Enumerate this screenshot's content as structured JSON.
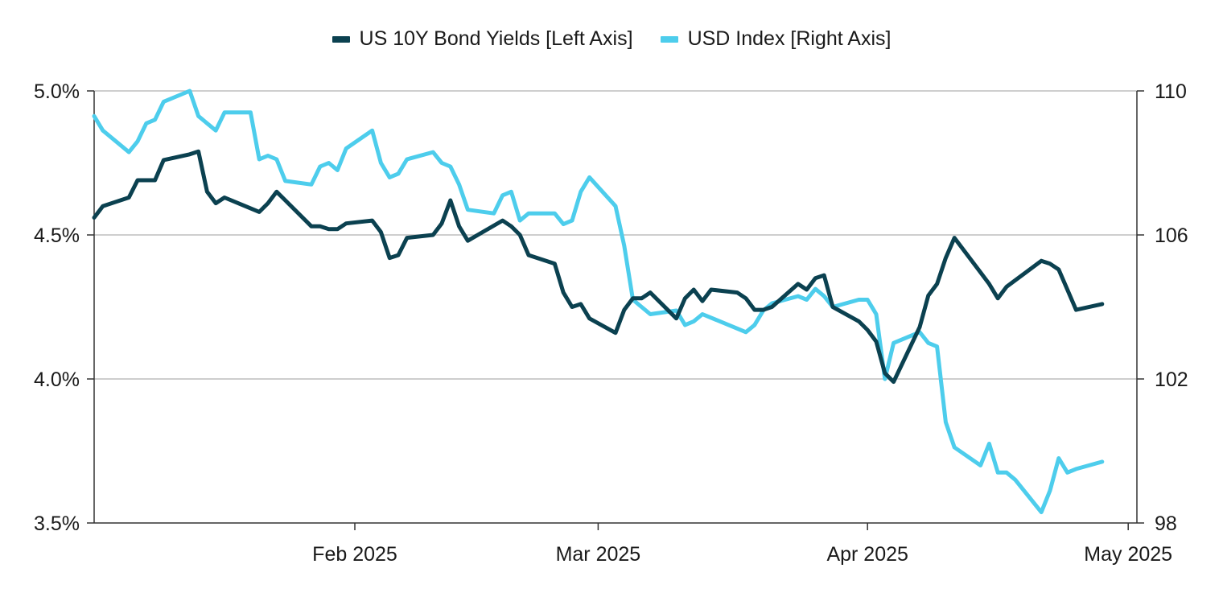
{
  "chart_data": {
    "type": "line",
    "title": "",
    "legend_placement": "top-center",
    "grid": true,
    "x_axis": {
      "type": "date",
      "range": [
        "2025-01-02",
        "2025-05-02"
      ],
      "ticks": [
        {
          "date": "2025-02-01",
          "label": "Feb 2025"
        },
        {
          "date": "2025-03-01",
          "label": "Mar 2025"
        },
        {
          "date": "2025-04-01",
          "label": "Apr 2025"
        },
        {
          "date": "2025-05-01",
          "label": "May 2025"
        }
      ]
    },
    "y_left": {
      "range": [
        3.5,
        5.0
      ],
      "ticks": [
        {
          "value": 3.5,
          "label": "3.5%"
        },
        {
          "value": 4.0,
          "label": "4.0%"
        },
        {
          "value": 4.5,
          "label": "4.5%"
        },
        {
          "value": 5.0,
          "label": "5.0%"
        }
      ]
    },
    "y_right": {
      "range": [
        98,
        110
      ],
      "ticks": [
        {
          "value": 98,
          "label": "98"
        },
        {
          "value": 102,
          "label": "102"
        },
        {
          "value": 106,
          "label": "106"
        },
        {
          "value": 110,
          "label": "110"
        }
      ]
    },
    "series": [
      {
        "name": "US 10Y Bond Yields [Left Axis]",
        "axis": "left",
        "color": "#0b4150",
        "points": [
          [
            "2025-01-02",
            4.56
          ],
          [
            "2025-01-03",
            4.6
          ],
          [
            "2025-01-06",
            4.63
          ],
          [
            "2025-01-07",
            4.69
          ],
          [
            "2025-01-08",
            4.69
          ],
          [
            "2025-01-09",
            4.69
          ],
          [
            "2025-01-10",
            4.76
          ],
          [
            "2025-01-13",
            4.78
          ],
          [
            "2025-01-14",
            4.79
          ],
          [
            "2025-01-15",
            4.65
          ],
          [
            "2025-01-16",
            4.61
          ],
          [
            "2025-01-17",
            4.63
          ],
          [
            "2025-01-21",
            4.58
          ],
          [
            "2025-01-22",
            4.61
          ],
          [
            "2025-01-23",
            4.65
          ],
          [
            "2025-01-24",
            4.62
          ],
          [
            "2025-01-27",
            4.53
          ],
          [
            "2025-01-28",
            4.53
          ],
          [
            "2025-01-29",
            4.52
          ],
          [
            "2025-01-30",
            4.52
          ],
          [
            "2025-01-31",
            4.54
          ],
          [
            "2025-02-03",
            4.55
          ],
          [
            "2025-02-04",
            4.51
          ],
          [
            "2025-02-05",
            4.42
          ],
          [
            "2025-02-06",
            4.43
          ],
          [
            "2025-02-07",
            4.49
          ],
          [
            "2025-02-10",
            4.5
          ],
          [
            "2025-02-11",
            4.54
          ],
          [
            "2025-02-12",
            4.62
          ],
          [
            "2025-02-13",
            4.53
          ],
          [
            "2025-02-14",
            4.48
          ],
          [
            "2025-02-18",
            4.55
          ],
          [
            "2025-02-19",
            4.53
          ],
          [
            "2025-02-20",
            4.5
          ],
          [
            "2025-02-21",
            4.43
          ],
          [
            "2025-02-24",
            4.4
          ],
          [
            "2025-02-25",
            4.3
          ],
          [
            "2025-02-26",
            4.25
          ],
          [
            "2025-02-27",
            4.26
          ],
          [
            "2025-02-28",
            4.21
          ],
          [
            "2025-03-03",
            4.16
          ],
          [
            "2025-03-04",
            4.24
          ],
          [
            "2025-03-05",
            4.28
          ],
          [
            "2025-03-06",
            4.28
          ],
          [
            "2025-03-07",
            4.3
          ],
          [
            "2025-03-10",
            4.21
          ],
          [
            "2025-03-11",
            4.28
          ],
          [
            "2025-03-12",
            4.31
          ],
          [
            "2025-03-13",
            4.27
          ],
          [
            "2025-03-14",
            4.31
          ],
          [
            "2025-03-17",
            4.3
          ],
          [
            "2025-03-18",
            4.28
          ],
          [
            "2025-03-19",
            4.24
          ],
          [
            "2025-03-20",
            4.24
          ],
          [
            "2025-03-21",
            4.25
          ],
          [
            "2025-03-24",
            4.33
          ],
          [
            "2025-03-25",
            4.31
          ],
          [
            "2025-03-26",
            4.35
          ],
          [
            "2025-03-27",
            4.36
          ],
          [
            "2025-03-28",
            4.25
          ],
          [
            "2025-03-31",
            4.2
          ],
          [
            "2025-04-01",
            4.17
          ],
          [
            "2025-04-02",
            4.13
          ],
          [
            "2025-04-03",
            4.02
          ],
          [
            "2025-04-04",
            3.99
          ],
          [
            "2025-04-07",
            4.18
          ],
          [
            "2025-04-08",
            4.29
          ],
          [
            "2025-04-09",
            4.33
          ],
          [
            "2025-04-10",
            4.42
          ],
          [
            "2025-04-11",
            4.49
          ],
          [
            "2025-04-14",
            4.37
          ],
          [
            "2025-04-15",
            4.33
          ],
          [
            "2025-04-16",
            4.28
          ],
          [
            "2025-04-17",
            4.32
          ],
          [
            "2025-04-21",
            4.41
          ],
          [
            "2025-04-22",
            4.4
          ],
          [
            "2025-04-23",
            4.38
          ],
          [
            "2025-04-24",
            4.31
          ],
          [
            "2025-04-25",
            4.24
          ],
          [
            "2025-04-28",
            4.26
          ]
        ]
      },
      {
        "name": "USD Index [Right Axis]",
        "axis": "right",
        "color": "#4dcdec",
        "points": [
          [
            "2025-01-02",
            109.3
          ],
          [
            "2025-01-03",
            108.9
          ],
          [
            "2025-01-06",
            108.3
          ],
          [
            "2025-01-07",
            108.6
          ],
          [
            "2025-01-08",
            109.1
          ],
          [
            "2025-01-09",
            109.2
          ],
          [
            "2025-01-10",
            109.7
          ],
          [
            "2025-01-13",
            110.0
          ],
          [
            "2025-01-14",
            109.3
          ],
          [
            "2025-01-15",
            109.1
          ],
          [
            "2025-01-16",
            108.9
          ],
          [
            "2025-01-17",
            109.4
          ],
          [
            "2025-01-20",
            109.4
          ],
          [
            "2025-01-21",
            108.1
          ],
          [
            "2025-01-22",
            108.2
          ],
          [
            "2025-01-23",
            108.1
          ],
          [
            "2025-01-24",
            107.5
          ],
          [
            "2025-01-27",
            107.4
          ],
          [
            "2025-01-28",
            107.9
          ],
          [
            "2025-01-29",
            108.0
          ],
          [
            "2025-01-30",
            107.8
          ],
          [
            "2025-01-31",
            108.4
          ],
          [
            "2025-02-03",
            108.9
          ],
          [
            "2025-02-04",
            108.0
          ],
          [
            "2025-02-05",
            107.6
          ],
          [
            "2025-02-06",
            107.7
          ],
          [
            "2025-02-07",
            108.1
          ],
          [
            "2025-02-10",
            108.3
          ],
          [
            "2025-02-11",
            108.0
          ],
          [
            "2025-02-12",
            107.9
          ],
          [
            "2025-02-13",
            107.4
          ],
          [
            "2025-02-14",
            106.7
          ],
          [
            "2025-02-17",
            106.6
          ],
          [
            "2025-02-18",
            107.1
          ],
          [
            "2025-02-19",
            107.2
          ],
          [
            "2025-02-20",
            106.4
          ],
          [
            "2025-02-21",
            106.6
          ],
          [
            "2025-02-24",
            106.6
          ],
          [
            "2025-02-25",
            106.3
          ],
          [
            "2025-02-26",
            106.4
          ],
          [
            "2025-02-27",
            107.2
          ],
          [
            "2025-02-28",
            107.6
          ],
          [
            "2025-03-03",
            106.8
          ],
          [
            "2025-03-04",
            105.7
          ],
          [
            "2025-03-05",
            104.2
          ],
          [
            "2025-03-06",
            104.0
          ],
          [
            "2025-03-07",
            103.8
          ],
          [
            "2025-03-10",
            103.9
          ],
          [
            "2025-03-11",
            103.5
          ],
          [
            "2025-03-12",
            103.6
          ],
          [
            "2025-03-13",
            103.8
          ],
          [
            "2025-03-17",
            103.4
          ],
          [
            "2025-03-18",
            103.3
          ],
          [
            "2025-03-19",
            103.5
          ],
          [
            "2025-03-20",
            103.9
          ],
          [
            "2025-03-21",
            104.1
          ],
          [
            "2025-03-24",
            104.3
          ],
          [
            "2025-03-25",
            104.2
          ],
          [
            "2025-03-26",
            104.5
          ],
          [
            "2025-03-27",
            104.3
          ],
          [
            "2025-03-28",
            104.0
          ],
          [
            "2025-03-31",
            104.2
          ],
          [
            "2025-04-01",
            104.2
          ],
          [
            "2025-04-02",
            103.8
          ],
          [
            "2025-04-03",
            102.0
          ],
          [
            "2025-04-04",
            103.0
          ],
          [
            "2025-04-07",
            103.3
          ],
          [
            "2025-04-08",
            103.0
          ],
          [
            "2025-04-09",
            102.9
          ],
          [
            "2025-04-10",
            100.8
          ],
          [
            "2025-04-11",
            100.1
          ],
          [
            "2025-04-14",
            99.6
          ],
          [
            "2025-04-15",
            100.2
          ],
          [
            "2025-04-16",
            99.4
          ],
          [
            "2025-04-17",
            99.4
          ],
          [
            "2025-04-18",
            99.2
          ],
          [
            "2025-04-21",
            98.3
          ],
          [
            "2025-04-22",
            98.9
          ],
          [
            "2025-04-23",
            99.8
          ],
          [
            "2025-04-24",
            99.4
          ],
          [
            "2025-04-25",
            99.5
          ],
          [
            "2025-04-28",
            99.7
          ]
        ]
      }
    ]
  }
}
